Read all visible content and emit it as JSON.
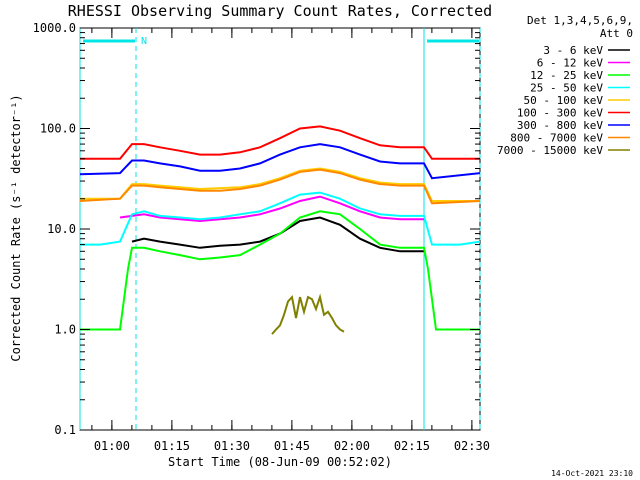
{
  "chart_data": {
    "type": "line",
    "title": "RHESSI Observing Summary Count Rates, Corrected",
    "xlabel": "Start Time (08-Jun-09 00:52:02)",
    "ylabel": "Corrected Count Rate (s⁻¹ detector⁻¹)",
    "y_scale": "log",
    "ylim": [
      0.1,
      1000.0
    ],
    "xlim_minutes": [
      0,
      100
    ],
    "y_tick_labels": [
      "0.1",
      "1.0",
      "10.0",
      "100.0",
      "1000.0"
    ],
    "x_tick_labels": [
      "01:00",
      "01:15",
      "01:30",
      "01:45",
      "02:00",
      "02:15",
      "02:30"
    ],
    "x_ticks_minutes": [
      7.97,
      22.97,
      37.97,
      52.97,
      67.97,
      82.97,
      97.97
    ],
    "legend_header": [
      "Det 1,3,4,5,6,9,",
      "Att 0"
    ],
    "date_stamp": "14-Oct-2021 23:10",
    "night_marker_label": "N",
    "night_intervals_minutes": [
      [
        0,
        14
      ],
      [
        86,
        100
      ]
    ],
    "series": [
      {
        "name": "3 - 6 keV",
        "color": "#000000",
        "x": [
          13,
          16,
          20,
          25,
          30,
          35,
          40,
          45,
          50,
          55,
          60,
          65,
          70,
          75,
          80,
          86
        ],
        "y": [
          7.5,
          8,
          7.5,
          7,
          6.5,
          6.8,
          7,
          7.5,
          9,
          12,
          13,
          11,
          8,
          6.5,
          6,
          6
        ]
      },
      {
        "name": "6 - 12 keV",
        "color": "#ff00ff",
        "x": [
          10,
          16,
          20,
          25,
          30,
          35,
          40,
          45,
          50,
          55,
          60,
          65,
          70,
          75,
          80,
          86
        ],
        "y": [
          13,
          14,
          13,
          12.5,
          12,
          12.5,
          13,
          14,
          16,
          19,
          21,
          18,
          15,
          13,
          12.5,
          12.5
        ]
      },
      {
        "name": "12 - 25 keV",
        "color": "#00ff00",
        "x": [
          0,
          10,
          11,
          12,
          13,
          16,
          20,
          25,
          30,
          35,
          40,
          45,
          50,
          55,
          60,
          65,
          70,
          75,
          80,
          86,
          87,
          88,
          89,
          100
        ],
        "y": [
          1,
          1,
          2,
          4,
          6.5,
          6.5,
          6,
          5.5,
          5,
          5.2,
          5.5,
          7,
          9,
          13,
          15,
          14,
          10,
          7,
          6.5,
          6.5,
          4,
          2,
          1,
          1
        ]
      },
      {
        "name": "25 - 50 keV",
        "color": "#00ffff",
        "x": [
          0,
          5,
          10,
          13,
          16,
          20,
          25,
          30,
          35,
          40,
          45,
          50,
          55,
          60,
          65,
          70,
          75,
          80,
          86,
          88,
          95,
          100
        ],
        "y": [
          7,
          7,
          7.5,
          14,
          15,
          13.5,
          13,
          12.5,
          13,
          14,
          15,
          18,
          22,
          23,
          20,
          16,
          14,
          13.5,
          13.5,
          7,
          7,
          7.5
        ]
      },
      {
        "name": "50 - 100 keV",
        "color": "#ffcc00",
        "x": [
          0,
          10,
          13,
          16,
          20,
          25,
          30,
          35,
          40,
          45,
          50,
          55,
          60,
          65,
          70,
          75,
          80,
          86,
          88,
          100
        ],
        "y": [
          20,
          20,
          28,
          28,
          27,
          26,
          25,
          25.5,
          26,
          28,
          32,
          38,
          40,
          37,
          32,
          29,
          28,
          28,
          19,
          19
        ]
      },
      {
        "name": "100 - 300 keV",
        "color": "#ff0000",
        "x": [
          0,
          10,
          13,
          16,
          20,
          25,
          30,
          35,
          40,
          45,
          50,
          55,
          60,
          65,
          70,
          75,
          80,
          86,
          88,
          100
        ],
        "y": [
          50,
          50,
          70,
          70,
          65,
          60,
          55,
          55,
          58,
          65,
          80,
          100,
          105,
          95,
          80,
          68,
          65,
          65,
          50,
          50
        ]
      },
      {
        "name": "300 - 800 keV",
        "color": "#0000ff",
        "x": [
          0,
          10,
          13,
          16,
          20,
          25,
          30,
          35,
          40,
          45,
          50,
          55,
          60,
          65,
          70,
          75,
          80,
          86,
          88,
          100
        ],
        "y": [
          35,
          36,
          48,
          48,
          45,
          42,
          38,
          38,
          40,
          45,
          55,
          65,
          70,
          65,
          55,
          47,
          45,
          45,
          32,
          36
        ]
      },
      {
        "name": "800 - 7000 keV",
        "color": "#ff8800",
        "x": [
          0,
          10,
          13,
          16,
          20,
          25,
          30,
          35,
          40,
          45,
          50,
          55,
          60,
          65,
          70,
          75,
          80,
          86,
          88,
          100
        ],
        "y": [
          19,
          20,
          27,
          27,
          26,
          25,
          24,
          24,
          25,
          27,
          31,
          37,
          39,
          36,
          31,
          28,
          27,
          27,
          18,
          19
        ]
      },
      {
        "name": "7000 - 15000 keV",
        "color": "#808000",
        "x": [
          48,
          49,
          50,
          51,
          52,
          53,
          54,
          55,
          56,
          57,
          58,
          59,
          60,
          61,
          62,
          63,
          64,
          65,
          66
        ],
        "y": [
          0.9,
          1,
          1.1,
          1.4,
          1.9,
          2.1,
          1.3,
          2.1,
          1.5,
          2.1,
          2,
          1.6,
          2.1,
          1.4,
          1.5,
          1.3,
          1.1,
          1,
          0.95
        ]
      }
    ]
  }
}
